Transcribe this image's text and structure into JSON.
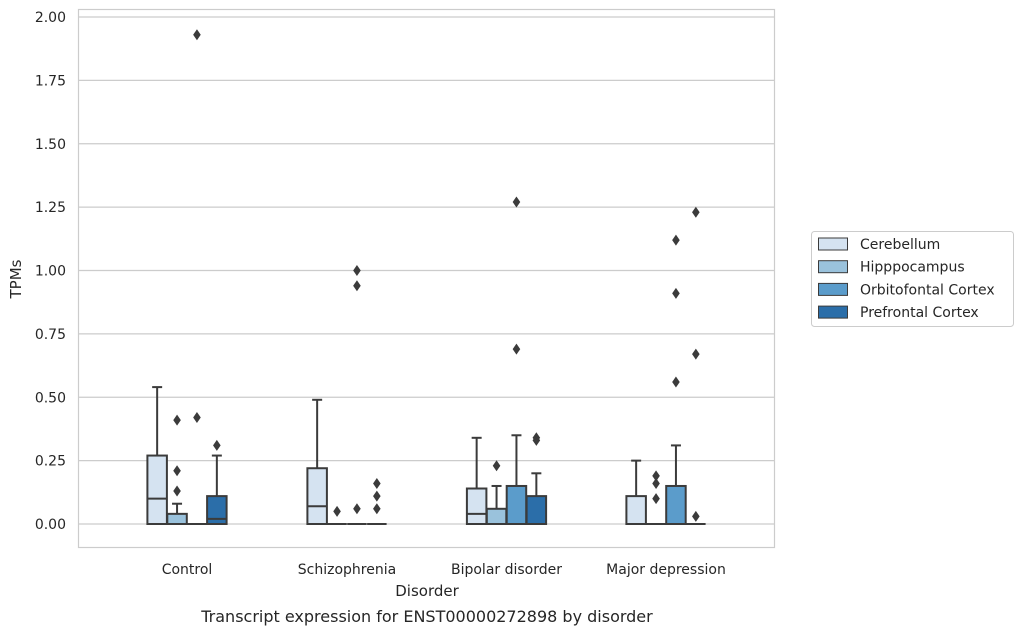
{
  "caption": "Transcript expression for ENST00000272898 by disorder",
  "chart_data": {
    "type": "box",
    "xlabel": "Disorder",
    "ylabel": "TPMs",
    "ylim": [
      -0.09,
      2.03
    ],
    "yticks": [
      0.0,
      0.25,
      0.5,
      0.75,
      1.0,
      1.25,
      1.5,
      1.75,
      2.0
    ],
    "ytick_labels": [
      "0.00",
      "0.25",
      "0.50",
      "0.75",
      "1.00",
      "1.25",
      "1.50",
      "1.75",
      "2.00"
    ],
    "grid": "horizontal",
    "legend_position": "right",
    "categories": [
      "Control",
      "Schizophrenia",
      "Bipolar disorder",
      "Major depression"
    ],
    "series": [
      {
        "name": "Cerebellum",
        "color": "#d5e3f1",
        "boxes": [
          {
            "q1": 0.0,
            "median": 0.1,
            "q3": 0.27,
            "whisker_low": 0.0,
            "whisker_high": 0.54,
            "outliers": []
          },
          {
            "q1": 0.0,
            "median": 0.07,
            "q3": 0.22,
            "whisker_low": 0.0,
            "whisker_high": 0.49,
            "outliers": []
          },
          {
            "q1": 0.0,
            "median": 0.04,
            "q3": 0.14,
            "whisker_low": 0.0,
            "whisker_high": 0.34,
            "outliers": []
          },
          {
            "q1": 0.0,
            "median": 0.0,
            "q3": 0.11,
            "whisker_low": 0.0,
            "whisker_high": 0.25,
            "outliers": []
          }
        ]
      },
      {
        "name": "Hipppocampus",
        "color": "#9ac2dc",
        "boxes": [
          {
            "q1": 0.0,
            "median": 0.0,
            "q3": 0.04,
            "whisker_low": 0.0,
            "whisker_high": 0.08,
            "outliers": [
              0.13,
              0.21,
              0.41
            ]
          },
          {
            "q1": 0.0,
            "median": 0.0,
            "q3": 0.0,
            "whisker_low": 0.0,
            "whisker_high": 0.0,
            "outliers": [
              0.05
            ]
          },
          {
            "q1": 0.0,
            "median": 0.0,
            "q3": 0.06,
            "whisker_low": 0.0,
            "whisker_high": 0.15,
            "outliers": [
              0.23
            ]
          },
          {
            "q1": 0.0,
            "median": 0.0,
            "q3": 0.0,
            "whisker_low": 0.0,
            "whisker_high": 0.0,
            "outliers": [
              0.1,
              0.16,
              0.19
            ]
          }
        ]
      },
      {
        "name": "Orbitofontal Cortex",
        "color": "#5b9ccb",
        "boxes": [
          {
            "q1": 0.0,
            "median": 0.0,
            "q3": 0.0,
            "whisker_low": 0.0,
            "whisker_high": 0.0,
            "outliers": [
              0.42,
              1.93
            ]
          },
          {
            "q1": 0.0,
            "median": 0.0,
            "q3": 0.0,
            "whisker_low": 0.0,
            "whisker_high": 0.0,
            "outliers": [
              0.06,
              0.94,
              1.0
            ]
          },
          {
            "q1": 0.0,
            "median": 0.0,
            "q3": 0.15,
            "whisker_low": 0.0,
            "whisker_high": 0.35,
            "outliers": [
              0.69,
              1.27
            ]
          },
          {
            "q1": 0.0,
            "median": 0.0,
            "q3": 0.15,
            "whisker_low": 0.0,
            "whisker_high": 0.31,
            "outliers": [
              0.56,
              0.91,
              1.12
            ]
          }
        ]
      },
      {
        "name": "Prefrontal Cortex",
        "color": "#2b6ea9",
        "boxes": [
          {
            "q1": 0.0,
            "median": 0.02,
            "q3": 0.11,
            "whisker_low": 0.0,
            "whisker_high": 0.27,
            "outliers": [
              0.31
            ]
          },
          {
            "q1": 0.0,
            "median": 0.0,
            "q3": 0.0,
            "whisker_low": 0.0,
            "whisker_high": 0.0,
            "outliers": [
              0.06,
              0.11,
              0.16
            ]
          },
          {
            "q1": 0.0,
            "median": 0.0,
            "q3": 0.11,
            "whisker_low": 0.0,
            "whisker_high": 0.2,
            "outliers": [
              0.33,
              0.34
            ]
          },
          {
            "q1": 0.0,
            "median": 0.0,
            "q3": 0.0,
            "whisker_low": 0.0,
            "whisker_high": 0.0,
            "outliers": [
              0.03,
              0.67,
              1.23
            ]
          }
        ]
      }
    ]
  }
}
